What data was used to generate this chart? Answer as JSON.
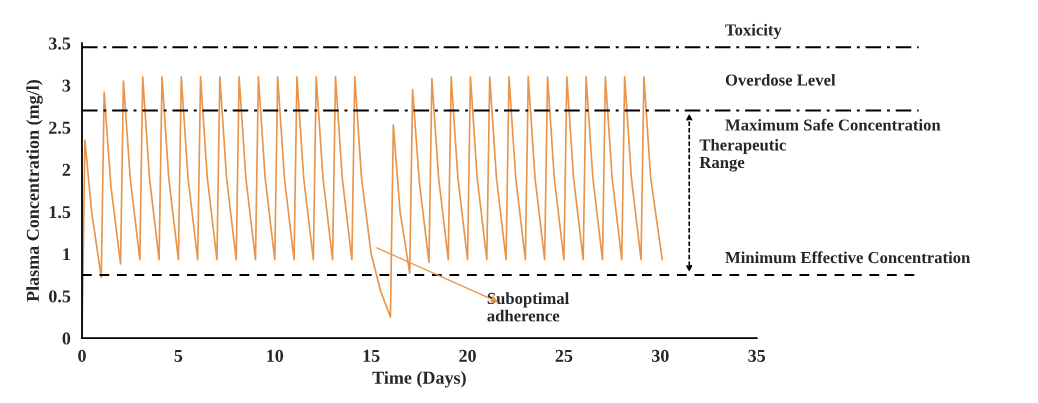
{
  "chart_data": {
    "type": "line",
    "xlabel": "Time (Days)",
    "ylabel": "Plasma Concentration (mg/l)",
    "xlim": [
      0,
      35
    ],
    "xticks": [
      0,
      5,
      10,
      15,
      20,
      25,
      30,
      35
    ],
    "ylim": [
      0,
      3.5
    ],
    "yticks": [
      0,
      0.5,
      1,
      1.5,
      2,
      2.5,
      3,
      3.5
    ],
    "grid": false,
    "marker": "none",
    "line_style": "solid",
    "series": [
      {
        "color": "#e8944a",
        "x": [
          0,
          0.15,
          0.5,
          1.0,
          1.15,
          1.5,
          2.0,
          2.15,
          2.5,
          3.0,
          3.15,
          3.5,
          4.0,
          4.15,
          4.5,
          5.0,
          5.15,
          5.5,
          6.0,
          6.15,
          6.5,
          7.0,
          7.15,
          7.5,
          8.0,
          8.15,
          8.5,
          9.0,
          9.15,
          9.5,
          10.0,
          10.15,
          10.5,
          11.0,
          11.15,
          11.5,
          12.0,
          12.15,
          12.5,
          13.0,
          13.15,
          13.5,
          14.0,
          14.15,
          14.5,
          15.0,
          15.5,
          16.0,
          16.15,
          16.5,
          17.0,
          17.15,
          17.5,
          18.0,
          18.15,
          18.5,
          19.0,
          19.15,
          19.5,
          20.0,
          20.15,
          20.5,
          21.0,
          21.15,
          21.5,
          22.0,
          22.15,
          22.5,
          23.0,
          23.15,
          23.5,
          24.0,
          24.15,
          24.5,
          25.0,
          25.15,
          25.5,
          26.0,
          26.15,
          26.5,
          27.0,
          27.15,
          27.5,
          28.0,
          28.15,
          28.5,
          29.0,
          29.15,
          29.5,
          30.1
        ],
        "values": [
          0,
          2.35,
          1.5,
          0.72,
          2.92,
          1.8,
          0.88,
          3.05,
          1.9,
          0.93,
          3.1,
          1.9,
          0.93,
          3.1,
          1.9,
          0.93,
          3.1,
          1.9,
          0.93,
          3.1,
          1.9,
          0.93,
          3.1,
          1.9,
          0.93,
          3.1,
          1.9,
          0.93,
          3.1,
          1.9,
          0.93,
          3.1,
          1.9,
          0.93,
          3.1,
          1.9,
          0.93,
          3.1,
          1.9,
          0.93,
          3.1,
          1.9,
          0.93,
          3.1,
          1.9,
          1.0,
          0.55,
          0.25,
          2.53,
          1.5,
          0.77,
          2.95,
          1.85,
          0.9,
          3.08,
          1.9,
          0.93,
          3.1,
          1.9,
          0.93,
          3.1,
          1.9,
          0.93,
          3.1,
          1.9,
          0.93,
          3.1,
          1.9,
          0.93,
          3.1,
          1.9,
          0.93,
          3.1,
          1.9,
          0.93,
          3.1,
          1.9,
          0.93,
          3.1,
          1.9,
          0.93,
          3.1,
          1.9,
          0.93,
          3.1,
          1.9,
          0.93,
          3.1,
          1.9,
          0.93
        ]
      }
    ],
    "ref_lines": [
      {
        "axis": "y",
        "value": 3.45,
        "label": "Toxicity",
        "color": "#000000",
        "line_style": "dashdot"
      },
      {
        "axis": "y",
        "value": 2.7,
        "label": "Maximum Safe Concentration",
        "color": "#000000",
        "line_style": "dashdot"
      },
      {
        "axis": "y",
        "value": 0.75,
        "label": "Minimum Effective Concentration",
        "color": "#000000",
        "line_style": "dashed"
      }
    ],
    "annotations": [
      "Overdose Level",
      "Therapeutic Range",
      "Suboptimal adherence"
    ]
  }
}
